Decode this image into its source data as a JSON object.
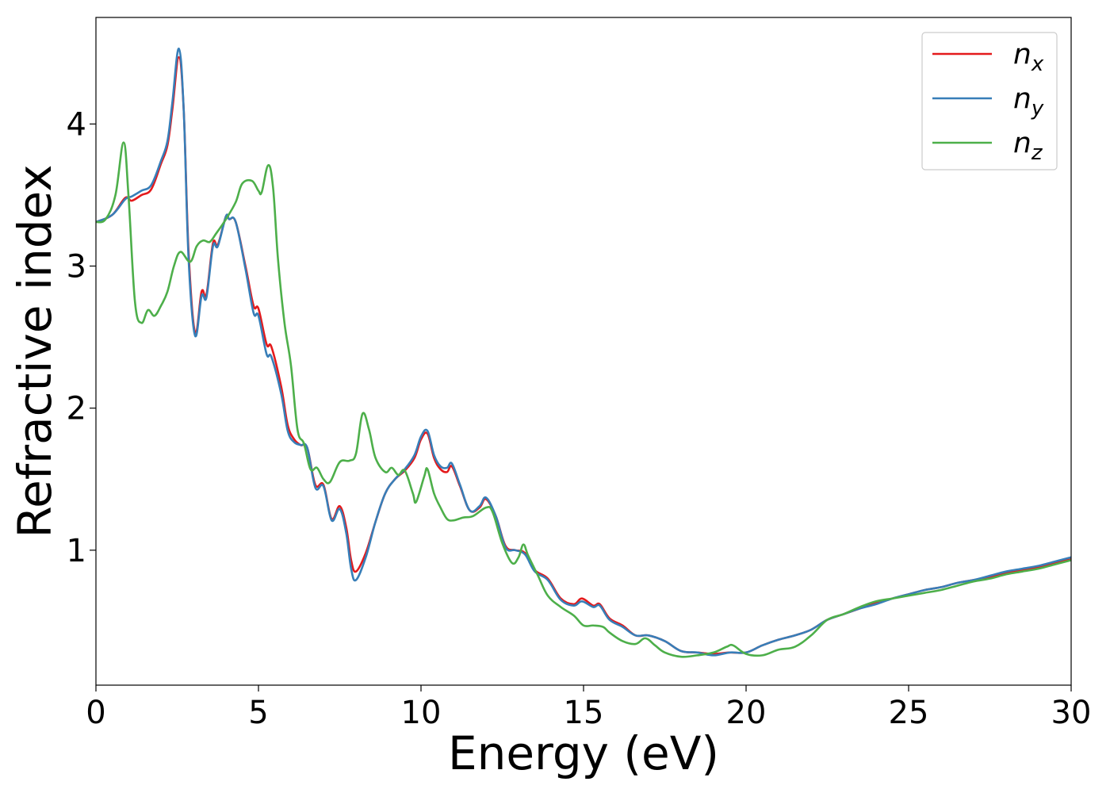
{
  "chart_data": {
    "type": "line",
    "xlabel": "Energy (eV)",
    "ylabel": "Refractive index",
    "xlim": [
      0,
      30
    ],
    "ylim": [
      0.05,
      4.75
    ],
    "xticks": [
      0,
      5,
      10,
      15,
      20,
      25,
      30
    ],
    "yticks": [
      1,
      2,
      3,
      4
    ],
    "grid": false,
    "legend": {
      "placement": "top-right",
      "entries": [
        {
          "base": "n",
          "sub": "x"
        },
        {
          "base": "n",
          "sub": "y"
        },
        {
          "base": "n",
          "sub": "z"
        }
      ]
    },
    "series": [
      {
        "color": "#e41a1c",
        "points": [
          [
            0,
            3.31
          ],
          [
            0.5,
            3.36
          ],
          [
            0.9,
            3.48
          ],
          [
            1.1,
            3.46
          ],
          [
            1.4,
            3.5
          ],
          [
            1.7,
            3.54
          ],
          [
            2.0,
            3.72
          ],
          [
            2.2,
            3.85
          ],
          [
            2.35,
            4.1
          ],
          [
            2.55,
            4.47
          ],
          [
            2.7,
            4.1
          ],
          [
            2.85,
            3.1
          ],
          [
            3.05,
            2.53
          ],
          [
            3.25,
            2.82
          ],
          [
            3.4,
            2.8
          ],
          [
            3.6,
            3.16
          ],
          [
            3.75,
            3.15
          ],
          [
            4.0,
            3.35
          ],
          [
            4.1,
            3.33
          ],
          [
            4.3,
            3.31
          ],
          [
            4.6,
            3.0
          ],
          [
            4.85,
            2.72
          ],
          [
            5.0,
            2.7
          ],
          [
            5.25,
            2.45
          ],
          [
            5.4,
            2.43
          ],
          [
            5.7,
            2.15
          ],
          [
            5.9,
            1.88
          ],
          [
            6.1,
            1.78
          ],
          [
            6.3,
            1.74
          ],
          [
            6.5,
            1.72
          ],
          [
            6.75,
            1.46
          ],
          [
            7.0,
            1.46
          ],
          [
            7.25,
            1.22
          ],
          [
            7.5,
            1.31
          ],
          [
            7.7,
            1.16
          ],
          [
            7.85,
            0.93
          ],
          [
            8.0,
            0.85
          ],
          [
            8.3,
            0.98
          ],
          [
            8.6,
            1.2
          ],
          [
            8.9,
            1.4
          ],
          [
            9.2,
            1.5
          ],
          [
            9.5,
            1.56
          ],
          [
            9.8,
            1.65
          ],
          [
            10.0,
            1.78
          ],
          [
            10.2,
            1.82
          ],
          [
            10.4,
            1.65
          ],
          [
            10.6,
            1.57
          ],
          [
            10.8,
            1.55
          ],
          [
            10.95,
            1.59
          ],
          [
            11.2,
            1.45
          ],
          [
            11.5,
            1.28
          ],
          [
            11.8,
            1.3
          ],
          [
            12.0,
            1.36
          ],
          [
            12.3,
            1.24
          ],
          [
            12.6,
            1.03
          ],
          [
            12.9,
            1.0
          ],
          [
            13.2,
            0.98
          ],
          [
            13.5,
            0.86
          ],
          [
            13.9,
            0.8
          ],
          [
            14.3,
            0.66
          ],
          [
            14.7,
            0.62
          ],
          [
            14.95,
            0.66
          ],
          [
            15.3,
            0.61
          ],
          [
            15.5,
            0.62
          ],
          [
            15.8,
            0.52
          ],
          [
            16.2,
            0.47
          ],
          [
            16.6,
            0.4
          ],
          [
            17.0,
            0.4
          ],
          [
            17.5,
            0.36
          ],
          [
            18.0,
            0.29
          ],
          [
            18.5,
            0.28
          ],
          [
            19.0,
            0.27
          ],
          [
            19.5,
            0.28
          ],
          [
            20.0,
            0.28
          ],
          [
            20.5,
            0.33
          ],
          [
            21.0,
            0.37
          ],
          [
            21.5,
            0.4
          ],
          [
            22.0,
            0.44
          ],
          [
            22.5,
            0.51
          ],
          [
            23.0,
            0.55
          ],
          [
            23.5,
            0.59
          ],
          [
            24.0,
            0.63
          ],
          [
            24.5,
            0.66
          ],
          [
            25.0,
            0.69
          ],
          [
            25.5,
            0.72
          ],
          [
            26.0,
            0.74
          ],
          [
            26.5,
            0.77
          ],
          [
            27.0,
            0.79
          ],
          [
            27.5,
            0.81
          ],
          [
            28.0,
            0.84
          ],
          [
            28.5,
            0.86
          ],
          [
            29.0,
            0.88
          ],
          [
            29.5,
            0.91
          ],
          [
            30.0,
            0.94
          ]
        ]
      },
      {
        "color": "#377eb8",
        "points": [
          [
            0,
            3.31
          ],
          [
            0.5,
            3.36
          ],
          [
            0.9,
            3.47
          ],
          [
            1.1,
            3.49
          ],
          [
            1.4,
            3.53
          ],
          [
            1.7,
            3.57
          ],
          [
            2.0,
            3.74
          ],
          [
            2.2,
            3.88
          ],
          [
            2.35,
            4.15
          ],
          [
            2.55,
            4.53
          ],
          [
            2.7,
            4.1
          ],
          [
            2.85,
            3.05
          ],
          [
            3.05,
            2.51
          ],
          [
            3.25,
            2.79
          ],
          [
            3.4,
            2.78
          ],
          [
            3.6,
            3.14
          ],
          [
            3.75,
            3.14
          ],
          [
            4.0,
            3.35
          ],
          [
            4.1,
            3.33
          ],
          [
            4.3,
            3.31
          ],
          [
            4.6,
            2.98
          ],
          [
            4.85,
            2.67
          ],
          [
            5.0,
            2.65
          ],
          [
            5.25,
            2.38
          ],
          [
            5.4,
            2.36
          ],
          [
            5.7,
            2.1
          ],
          [
            5.9,
            1.84
          ],
          [
            6.1,
            1.76
          ],
          [
            6.3,
            1.74
          ],
          [
            6.5,
            1.72
          ],
          [
            6.75,
            1.44
          ],
          [
            7.0,
            1.45
          ],
          [
            7.25,
            1.21
          ],
          [
            7.5,
            1.29
          ],
          [
            7.7,
            1.12
          ],
          [
            7.85,
            0.87
          ],
          [
            8.0,
            0.79
          ],
          [
            8.3,
            0.95
          ],
          [
            8.6,
            1.2
          ],
          [
            8.9,
            1.4
          ],
          [
            9.2,
            1.5
          ],
          [
            9.5,
            1.57
          ],
          [
            9.8,
            1.67
          ],
          [
            10.0,
            1.8
          ],
          [
            10.2,
            1.84
          ],
          [
            10.4,
            1.67
          ],
          [
            10.6,
            1.59
          ],
          [
            10.8,
            1.58
          ],
          [
            10.95,
            1.61
          ],
          [
            11.2,
            1.46
          ],
          [
            11.5,
            1.28
          ],
          [
            11.8,
            1.31
          ],
          [
            12.0,
            1.37
          ],
          [
            12.3,
            1.24
          ],
          [
            12.6,
            1.02
          ],
          [
            12.9,
            1.0
          ],
          [
            13.2,
            0.97
          ],
          [
            13.5,
            0.85
          ],
          [
            13.9,
            0.79
          ],
          [
            14.3,
            0.65
          ],
          [
            14.7,
            0.61
          ],
          [
            14.95,
            0.64
          ],
          [
            15.3,
            0.6
          ],
          [
            15.5,
            0.61
          ],
          [
            15.8,
            0.51
          ],
          [
            16.2,
            0.46
          ],
          [
            16.6,
            0.4
          ],
          [
            17.0,
            0.4
          ],
          [
            17.5,
            0.36
          ],
          [
            18.0,
            0.29
          ],
          [
            18.5,
            0.28
          ],
          [
            19.0,
            0.26
          ],
          [
            19.5,
            0.28
          ],
          [
            20.0,
            0.28
          ],
          [
            20.5,
            0.33
          ],
          [
            21.0,
            0.37
          ],
          [
            21.5,
            0.4
          ],
          [
            22.0,
            0.44
          ],
          [
            22.5,
            0.51
          ],
          [
            23.0,
            0.55
          ],
          [
            23.5,
            0.59
          ],
          [
            24.0,
            0.62
          ],
          [
            24.5,
            0.66
          ],
          [
            25.0,
            0.69
          ],
          [
            25.5,
            0.72
          ],
          [
            26.0,
            0.74
          ],
          [
            26.5,
            0.77
          ],
          [
            27.0,
            0.79
          ],
          [
            27.5,
            0.82
          ],
          [
            28.0,
            0.85
          ],
          [
            28.5,
            0.87
          ],
          [
            29.0,
            0.89
          ],
          [
            29.5,
            0.92
          ],
          [
            30.0,
            0.95
          ]
        ]
      },
      {
        "color": "#4daf4a",
        "points": [
          [
            0,
            3.31
          ],
          [
            0.3,
            3.33
          ],
          [
            0.6,
            3.5
          ],
          [
            0.85,
            3.87
          ],
          [
            1.0,
            3.5
          ],
          [
            1.2,
            2.75
          ],
          [
            1.4,
            2.6
          ],
          [
            1.6,
            2.69
          ],
          [
            1.8,
            2.65
          ],
          [
            2.0,
            2.72
          ],
          [
            2.2,
            2.82
          ],
          [
            2.4,
            3.0
          ],
          [
            2.6,
            3.1
          ],
          [
            2.9,
            3.03
          ],
          [
            3.1,
            3.14
          ],
          [
            3.3,
            3.18
          ],
          [
            3.5,
            3.17
          ],
          [
            3.7,
            3.23
          ],
          [
            4.0,
            3.33
          ],
          [
            4.3,
            3.45
          ],
          [
            4.5,
            3.58
          ],
          [
            4.8,
            3.6
          ],
          [
            5.0,
            3.53
          ],
          [
            5.1,
            3.52
          ],
          [
            5.3,
            3.71
          ],
          [
            5.45,
            3.55
          ],
          [
            5.6,
            3.05
          ],
          [
            5.8,
            2.6
          ],
          [
            6.0,
            2.3
          ],
          [
            6.2,
            1.85
          ],
          [
            6.4,
            1.75
          ],
          [
            6.6,
            1.57
          ],
          [
            6.8,
            1.58
          ],
          [
            7.0,
            1.5
          ],
          [
            7.2,
            1.48
          ],
          [
            7.5,
            1.62
          ],
          [
            7.8,
            1.63
          ],
          [
            8.0,
            1.68
          ],
          [
            8.2,
            1.96
          ],
          [
            8.4,
            1.85
          ],
          [
            8.6,
            1.65
          ],
          [
            8.9,
            1.55
          ],
          [
            9.1,
            1.58
          ],
          [
            9.3,
            1.53
          ],
          [
            9.5,
            1.56
          ],
          [
            9.75,
            1.4
          ],
          [
            9.85,
            1.34
          ],
          [
            10.1,
            1.52
          ],
          [
            10.2,
            1.57
          ],
          [
            10.4,
            1.4
          ],
          [
            10.6,
            1.3
          ],
          [
            10.8,
            1.22
          ],
          [
            11.0,
            1.21
          ],
          [
            11.3,
            1.23
          ],
          [
            11.6,
            1.24
          ],
          [
            12.0,
            1.3
          ],
          [
            12.2,
            1.27
          ],
          [
            12.5,
            1.05
          ],
          [
            12.8,
            0.91
          ],
          [
            13.0,
            0.95
          ],
          [
            13.15,
            1.04
          ],
          [
            13.3,
            0.96
          ],
          [
            13.6,
            0.82
          ],
          [
            13.9,
            0.68
          ],
          [
            14.3,
            0.6
          ],
          [
            14.7,
            0.54
          ],
          [
            15.0,
            0.47
          ],
          [
            15.3,
            0.47
          ],
          [
            15.6,
            0.46
          ],
          [
            15.8,
            0.42
          ],
          [
            16.2,
            0.36
          ],
          [
            16.6,
            0.34
          ],
          [
            16.9,
            0.38
          ],
          [
            17.2,
            0.33
          ],
          [
            17.5,
            0.28
          ],
          [
            18.0,
            0.25
          ],
          [
            18.5,
            0.26
          ],
          [
            19.0,
            0.28
          ],
          [
            19.4,
            0.32
          ],
          [
            19.6,
            0.33
          ],
          [
            20.0,
            0.27
          ],
          [
            20.5,
            0.26
          ],
          [
            21.0,
            0.3
          ],
          [
            21.5,
            0.32
          ],
          [
            22.0,
            0.4
          ],
          [
            22.5,
            0.51
          ],
          [
            23.0,
            0.55
          ],
          [
            23.5,
            0.6
          ],
          [
            24.0,
            0.64
          ],
          [
            24.5,
            0.66
          ],
          [
            25.0,
            0.68
          ],
          [
            25.5,
            0.7
          ],
          [
            26.0,
            0.72
          ],
          [
            26.5,
            0.75
          ],
          [
            27.0,
            0.78
          ],
          [
            27.5,
            0.8
          ],
          [
            28.0,
            0.83
          ],
          [
            28.5,
            0.85
          ],
          [
            29.0,
            0.87
          ],
          [
            29.5,
            0.9
          ],
          [
            30.0,
            0.93
          ]
        ]
      }
    ]
  }
}
